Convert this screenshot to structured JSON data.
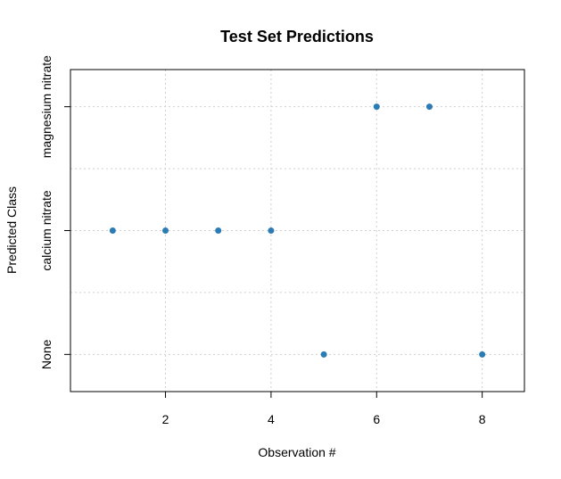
{
  "chart_data": {
    "type": "scatter",
    "title": "Test Set Predictions",
    "xlabel": "Observation #",
    "ylabel": "Predicted Class",
    "xlim": [
      0.2,
      8.8
    ],
    "ylim": [
      0.7,
      3.3
    ],
    "x_ticks": [
      2,
      4,
      6,
      8
    ],
    "y_categories": [
      "None",
      "calcium nitrate",
      "magnesium nitrate"
    ],
    "grid": true,
    "point_color": "#2b7bb4",
    "points": [
      {
        "x": 1,
        "y": "calcium nitrate"
      },
      {
        "x": 2,
        "y": "calcium nitrate"
      },
      {
        "x": 3,
        "y": "calcium nitrate"
      },
      {
        "x": 4,
        "y": "calcium nitrate"
      },
      {
        "x": 5,
        "y": "None"
      },
      {
        "x": 6,
        "y": "magnesium nitrate"
      },
      {
        "x": 7,
        "y": "magnesium nitrate"
      },
      {
        "x": 8,
        "y": "None"
      }
    ]
  }
}
